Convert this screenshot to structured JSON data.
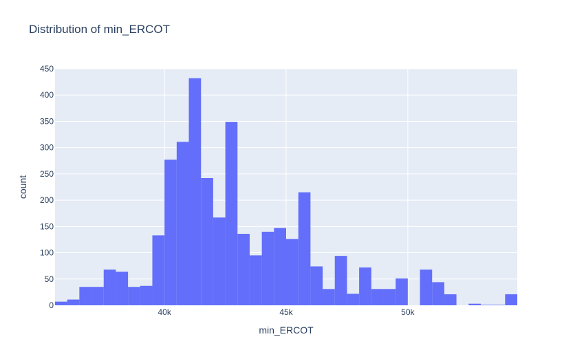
{
  "chart_data": {
    "type": "bar",
    "title": "Distribution of min_ERCOT",
    "xlabel": "min_ERCOT",
    "ylabel": "count",
    "bin_width": 500,
    "x_range": [
      35500,
      54500
    ],
    "ylim": [
      0,
      450
    ],
    "y_ticks": [
      0,
      50,
      100,
      150,
      200,
      250,
      300,
      350,
      400,
      450
    ],
    "x_ticks": [
      {
        "value": 40000,
        "label": "40k"
      },
      {
        "value": 45000,
        "label": "45k"
      },
      {
        "value": 50000,
        "label": "50k"
      }
    ],
    "bins": [
      {
        "x0": 35500,
        "count": 7
      },
      {
        "x0": 36000,
        "count": 11
      },
      {
        "x0": 36500,
        "count": 35
      },
      {
        "x0": 37000,
        "count": 35
      },
      {
        "x0": 37500,
        "count": 68
      },
      {
        "x0": 38000,
        "count": 64
      },
      {
        "x0": 38500,
        "count": 35
      },
      {
        "x0": 39000,
        "count": 37
      },
      {
        "x0": 39500,
        "count": 133
      },
      {
        "x0": 40000,
        "count": 277
      },
      {
        "x0": 40500,
        "count": 311
      },
      {
        "x0": 41000,
        "count": 432
      },
      {
        "x0": 41500,
        "count": 242
      },
      {
        "x0": 42000,
        "count": 167
      },
      {
        "x0": 42500,
        "count": 349
      },
      {
        "x0": 43000,
        "count": 136
      },
      {
        "x0": 43500,
        "count": 95
      },
      {
        "x0": 44000,
        "count": 140
      },
      {
        "x0": 44500,
        "count": 147
      },
      {
        "x0": 45000,
        "count": 126
      },
      {
        "x0": 45500,
        "count": 215
      },
      {
        "x0": 46000,
        "count": 74
      },
      {
        "x0": 46500,
        "count": 31
      },
      {
        "x0": 47000,
        "count": 94
      },
      {
        "x0": 47500,
        "count": 22
      },
      {
        "x0": 48000,
        "count": 72
      },
      {
        "x0": 48500,
        "count": 31
      },
      {
        "x0": 49000,
        "count": 31
      },
      {
        "x0": 49500,
        "count": 51
      },
      {
        "x0": 50000,
        "count": 0
      },
      {
        "x0": 50500,
        "count": 68
      },
      {
        "x0": 51000,
        "count": 44
      },
      {
        "x0": 51500,
        "count": 21
      },
      {
        "x0": 52000,
        "count": 0
      },
      {
        "x0": 52500,
        "count": 3
      },
      {
        "x0": 53000,
        "count": 1
      },
      {
        "x0": 53500,
        "count": 1
      },
      {
        "x0": 54000,
        "count": 21
      }
    ],
    "colors": {
      "bar": "#636efa",
      "plot_background": "#e5ecf6",
      "grid": "#ffffff",
      "text": "#2a3f5f"
    },
    "grid": true
  }
}
